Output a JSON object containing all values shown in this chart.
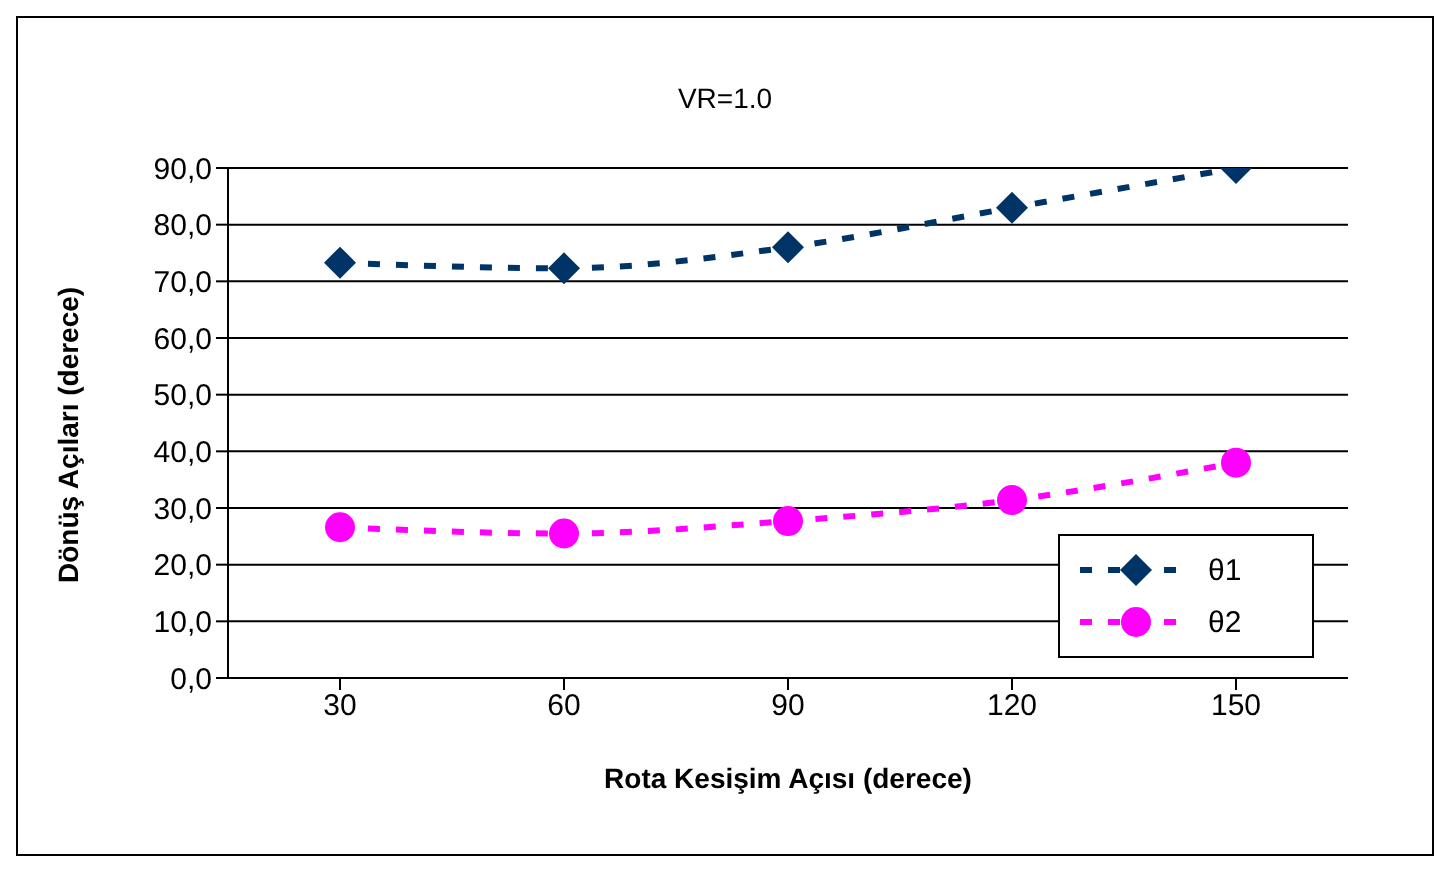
{
  "chart_data": {
    "type": "line",
    "title": "VR=1.0",
    "xlabel": "Rota Kesişim Açısı (derece)",
    "ylabel": "Dönüş Açıları (derece)",
    "categories": [
      "30",
      "60",
      "90",
      "120",
      "150"
    ],
    "series": [
      {
        "name": "θ1",
        "color": "#003366",
        "values": [
          73.3,
          72.3,
          76.0,
          83.0,
          90.0
        ],
        "marker": "diamond",
        "line_style": "dashed"
      },
      {
        "name": "θ2",
        "color": "#ff00ff",
        "values": [
          26.6,
          25.5,
          27.7,
          31.4,
          38.0
        ],
        "marker": "circle",
        "line_style": "dashed"
      }
    ],
    "ylim": [
      0,
      90
    ],
    "yticks": [
      {
        "value": 0,
        "label": "0,0"
      },
      {
        "value": 10,
        "label": "10,0"
      },
      {
        "value": 20,
        "label": "20,0"
      },
      {
        "value": 30,
        "label": "30,0"
      },
      {
        "value": 40,
        "label": "40,0"
      },
      {
        "value": 50,
        "label": "50,0"
      },
      {
        "value": 60,
        "label": "60,0"
      },
      {
        "value": 70,
        "label": "70,0"
      },
      {
        "value": 80,
        "label": "80,0"
      },
      {
        "value": 90,
        "label": "90,0"
      }
    ],
    "grid": "y",
    "legend": "bottom right"
  }
}
